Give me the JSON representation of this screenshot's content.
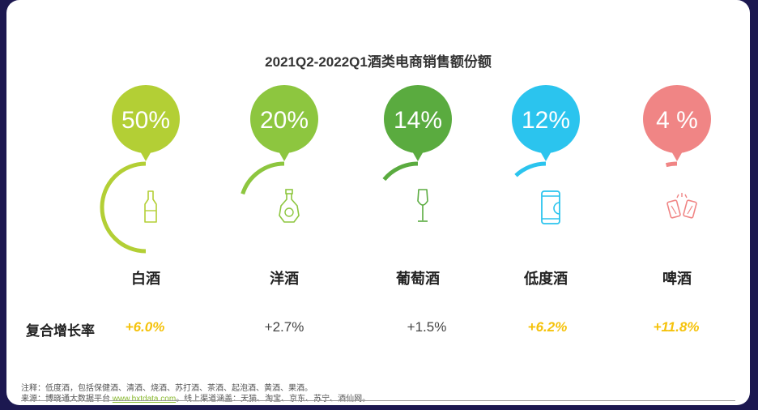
{
  "chart_data": {
    "type": "pie",
    "title": "2021Q2-2022Q1酒类电商销售额份额",
    "categories": [
      "白酒",
      "洋酒",
      "葡萄酒",
      "低度酒",
      "啤酒"
    ],
    "values": [
      50,
      20,
      14,
      12,
      4
    ],
    "value_labels": [
      "50%",
      "20%",
      "14%",
      "12%",
      "4 %"
    ],
    "colors": [
      "#b3cf35",
      "#8dc63f",
      "#5aab3f",
      "#2bc4ee",
      "#f08585"
    ],
    "icons": [
      "baijiu-bottle-icon",
      "liquor-bottle-icon",
      "wine-glass-icon",
      "can-icon",
      "beer-cheers-icon"
    ],
    "growth_label": "复合增长率",
    "growth": [
      "+6.0%",
      "+2.7%",
      "+1.5%",
      "+6.2%",
      "+11.8%"
    ],
    "growth_highlight": [
      true,
      false,
      false,
      true,
      true
    ],
    "highlight_color": "#f5c20b"
  },
  "footer": {
    "note": "注释：低度酒，包括保健酒、清酒、烧酒、苏打酒、茶酒、起泡酒、黄酒、果酒。",
    "source_prefix": "来源：博晓通大数据平台 ",
    "source_link": "www.bxtdata.com",
    "source_suffix": "。线上渠道涵盖：天猫、淘宝、京东、苏宁、酒仙网。"
  }
}
